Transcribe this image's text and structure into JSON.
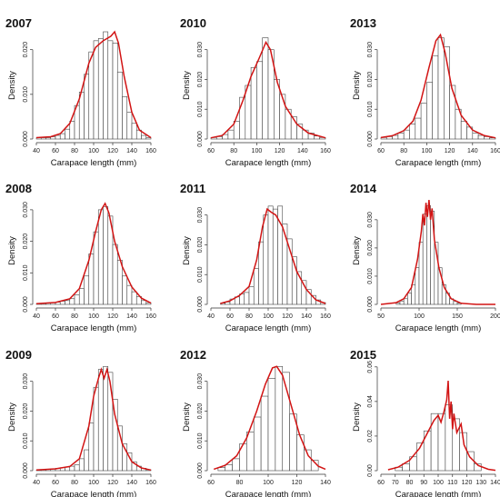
{
  "chart_data": [
    {
      "type": "histogram",
      "title": "2007",
      "xlabel": "Carapace length (mm)",
      "ylabel": "Density",
      "xlim": [
        40,
        160
      ],
      "ylim": [
        0,
        0.024
      ],
      "xticks": [
        40,
        60,
        80,
        100,
        120,
        140,
        160
      ],
      "yticks": [
        0,
        0.01,
        0.02
      ],
      "yticklabels": [
        "0.000",
        "0.010",
        "0.020"
      ],
      "bin_edges": [
        40,
        45,
        50,
        55,
        60,
        65,
        70,
        75,
        80,
        85,
        90,
        95,
        100,
        105,
        110,
        115,
        120,
        125,
        130,
        135,
        140,
        145,
        150,
        155,
        160
      ],
      "values": [
        0.0003,
        0.0003,
        0.0003,
        0.0005,
        0.0008,
        0.0012,
        0.0022,
        0.004,
        0.0075,
        0.0105,
        0.0145,
        0.0195,
        0.022,
        0.0225,
        0.024,
        0.022,
        0.0215,
        0.015,
        0.0095,
        0.006,
        0.0035,
        0.002,
        0.0008,
        0.0003
      ],
      "curve": [
        [
          40,
          0.0003
        ],
        [
          55,
          0.0005
        ],
        [
          65,
          0.0012
        ],
        [
          75,
          0.0035
        ],
        [
          85,
          0.009
        ],
        [
          95,
          0.017
        ],
        [
          102,
          0.0205
        ],
        [
          110,
          0.022
        ],
        [
          118,
          0.023
        ],
        [
          122,
          0.024
        ],
        [
          126,
          0.0215
        ],
        [
          132,
          0.014
        ],
        [
          140,
          0.006
        ],
        [
          148,
          0.002
        ],
        [
          160,
          0.0003
        ]
      ]
    },
    {
      "type": "histogram",
      "title": "2010",
      "xlabel": "Carapace length (mm)",
      "ylabel": "Density",
      "xlim": [
        60,
        160
      ],
      "ylim": [
        0,
        0.036
      ],
      "xticks": [
        60,
        80,
        100,
        120,
        140,
        160
      ],
      "yticks": [
        0,
        0.01,
        0.02,
        0.03
      ],
      "yticklabels": [
        "0.000",
        "0.010",
        "0.020",
        "0.030"
      ],
      "bin_edges": [
        60,
        65,
        70,
        75,
        80,
        85,
        90,
        95,
        100,
        105,
        110,
        115,
        120,
        125,
        130,
        135,
        140,
        145,
        150,
        155,
        160
      ],
      "values": [
        0.0005,
        0.0008,
        0.0015,
        0.003,
        0.006,
        0.014,
        0.018,
        0.024,
        0.026,
        0.034,
        0.03,
        0.02,
        0.015,
        0.01,
        0.0075,
        0.005,
        0.003,
        0.002,
        0.001,
        0.0005
      ],
      "curve": [
        [
          60,
          0.0004
        ],
        [
          70,
          0.0012
        ],
        [
          80,
          0.005
        ],
        [
          88,
          0.013
        ],
        [
          95,
          0.021
        ],
        [
          102,
          0.027
        ],
        [
          108,
          0.0325
        ],
        [
          112,
          0.03
        ],
        [
          118,
          0.019
        ],
        [
          125,
          0.011
        ],
        [
          135,
          0.005
        ],
        [
          145,
          0.002
        ],
        [
          160,
          0.0004
        ]
      ]
    },
    {
      "type": "histogram",
      "title": "2013",
      "xlabel": "Carapace length (mm)",
      "ylabel": "Density",
      "xlim": [
        60,
        160
      ],
      "ylim": [
        0,
        0.036
      ],
      "xticks": [
        60,
        80,
        100,
        120,
        140,
        160
      ],
      "yticks": [
        0,
        0.01,
        0.02,
        0.03
      ],
      "yticklabels": [
        "0.000",
        "0.010",
        "0.020",
        "0.030"
      ],
      "bin_edges": [
        60,
        65,
        70,
        75,
        80,
        85,
        90,
        95,
        100,
        105,
        110,
        115,
        120,
        125,
        130,
        135,
        140,
        145,
        150,
        155,
        160
      ],
      "values": [
        0.0005,
        0.0008,
        0.0012,
        0.002,
        0.003,
        0.005,
        0.007,
        0.012,
        0.019,
        0.028,
        0.034,
        0.031,
        0.018,
        0.01,
        0.006,
        0.004,
        0.002,
        0.0012,
        0.0008,
        0.0004
      ],
      "curve": [
        [
          60,
          0.0005
        ],
        [
          70,
          0.0011
        ],
        [
          80,
          0.0028
        ],
        [
          88,
          0.006
        ],
        [
          95,
          0.013
        ],
        [
          102,
          0.024
        ],
        [
          108,
          0.033
        ],
        [
          112,
          0.035
        ],
        [
          116,
          0.029
        ],
        [
          122,
          0.017
        ],
        [
          130,
          0.008
        ],
        [
          140,
          0.003
        ],
        [
          150,
          0.0012
        ],
        [
          160,
          0.0004
        ]
      ]
    },
    {
      "type": "histogram",
      "title": "2008",
      "xlabel": "Carapace length (mm)",
      "ylabel": "Density",
      "xlim": [
        40,
        160
      ],
      "ylim": [
        0,
        0.034
      ],
      "xticks": [
        40,
        60,
        80,
        100,
        120,
        140,
        160
      ],
      "yticks": [
        0,
        0.01,
        0.02,
        0.03
      ],
      "yticklabels": [
        "0.000",
        "0.010",
        "0.020",
        "0.030"
      ],
      "bin_edges": [
        40,
        45,
        50,
        55,
        60,
        65,
        70,
        75,
        80,
        85,
        90,
        95,
        100,
        105,
        110,
        115,
        120,
        125,
        130,
        135,
        140,
        145,
        150,
        155,
        160
      ],
      "values": [
        0.0002,
        0.0003,
        0.0004,
        0.0005,
        0.0007,
        0.001,
        0.0012,
        0.0018,
        0.003,
        0.005,
        0.009,
        0.016,
        0.023,
        0.03,
        0.031,
        0.028,
        0.019,
        0.014,
        0.009,
        0.006,
        0.004,
        0.0025,
        0.0012,
        0.0005
      ],
      "curve": [
        [
          40,
          0.0002
        ],
        [
          60,
          0.0006
        ],
        [
          75,
          0.0018
        ],
        [
          85,
          0.005
        ],
        [
          95,
          0.014
        ],
        [
          102,
          0.023
        ],
        [
          108,
          0.03
        ],
        [
          112,
          0.032
        ],
        [
          116,
          0.029
        ],
        [
          122,
          0.02
        ],
        [
          130,
          0.012
        ],
        [
          140,
          0.0055
        ],
        [
          150,
          0.002
        ],
        [
          160,
          0.0004
        ]
      ]
    },
    {
      "type": "histogram",
      "title": "2011",
      "xlabel": "Carapace length (mm)",
      "ylabel": "Density",
      "xlim": [
        40,
        160
      ],
      "ylim": [
        0,
        0.036
      ],
      "xticks": [
        40,
        60,
        80,
        100,
        120,
        140,
        160
      ],
      "yticks": [
        0,
        0.01,
        0.02,
        0.03
      ],
      "yticklabels": [
        "0.000",
        "0.010",
        "0.020",
        "0.030"
      ],
      "bin_edges": [
        50,
        55,
        60,
        65,
        70,
        75,
        80,
        85,
        90,
        95,
        100,
        105,
        110,
        115,
        120,
        125,
        130,
        135,
        140,
        145,
        150,
        155,
        160
      ],
      "values": [
        0.0004,
        0.0008,
        0.0018,
        0.0025,
        0.0035,
        0.004,
        0.006,
        0.012,
        0.021,
        0.03,
        0.033,
        0.032,
        0.033,
        0.027,
        0.022,
        0.016,
        0.011,
        0.008,
        0.005,
        0.003,
        0.0015,
        0.0006
      ],
      "curve": [
        [
          50,
          0.0003
        ],
        [
          60,
          0.0012
        ],
        [
          70,
          0.003
        ],
        [
          80,
          0.006
        ],
        [
          88,
          0.015
        ],
        [
          94,
          0.026
        ],
        [
          99,
          0.032
        ],
        [
          103,
          0.031
        ],
        [
          108,
          0.03
        ],
        [
          115,
          0.026
        ],
        [
          122,
          0.019
        ],
        [
          130,
          0.011
        ],
        [
          140,
          0.005
        ],
        [
          150,
          0.0015
        ],
        [
          160,
          0.0003
        ]
      ]
    },
    {
      "type": "histogram",
      "title": "2014",
      "xlabel": "Carapace length (mm)",
      "ylabel": "Density",
      "xlim": [
        50,
        200
      ],
      "ylim": [
        0,
        0.038
      ],
      "xticks": [
        50,
        100,
        150,
        200
      ],
      "yticks": [
        0,
        0.01,
        0.02,
        0.03
      ],
      "yticklabels": [
        "0.000",
        "0.010",
        "0.020",
        "0.030"
      ],
      "bin_edges": [
        70,
        75,
        80,
        85,
        90,
        95,
        100,
        105,
        110,
        115,
        120,
        125,
        130,
        135,
        140,
        145,
        150,
        155
      ],
      "values": [
        0.0005,
        0.0012,
        0.002,
        0.004,
        0.007,
        0.013,
        0.022,
        0.032,
        0.035,
        0.033,
        0.022,
        0.013,
        0.007,
        0.004,
        0.002,
        0.001,
        0.0004
      ],
      "curve": [
        [
          50,
          0
        ],
        [
          70,
          0.0006
        ],
        [
          80,
          0.002
        ],
        [
          90,
          0.006
        ],
        [
          98,
          0.016
        ],
        [
          103,
          0.026
        ],
        [
          105,
          0.032
        ],
        [
          107,
          0.028
        ],
        [
          109,
          0.036
        ],
        [
          111,
          0.031
        ],
        [
          113,
          0.037
        ],
        [
          115,
          0.03
        ],
        [
          117,
          0.034
        ],
        [
          120,
          0.023
        ],
        [
          126,
          0.013
        ],
        [
          133,
          0.006
        ],
        [
          142,
          0.002
        ],
        [
          155,
          0.0004
        ],
        [
          175,
          0
        ],
        [
          200,
          0
        ]
      ]
    },
    {
      "type": "histogram",
      "title": "2009",
      "xlabel": "Carapace length (mm)",
      "ylabel": "Density",
      "xlim": [
        40,
        160
      ],
      "ylim": [
        0,
        0.036
      ],
      "xticks": [
        40,
        60,
        80,
        100,
        120,
        140,
        160
      ],
      "yticks": [
        0,
        0.01,
        0.02,
        0.03
      ],
      "yticklabels": [
        "0.000",
        "0.010",
        "0.020",
        "0.030"
      ],
      "bin_edges": [
        40,
        45,
        50,
        55,
        60,
        65,
        70,
        75,
        80,
        85,
        90,
        95,
        100,
        105,
        110,
        115,
        120,
        125,
        130,
        135,
        140,
        145,
        150,
        155,
        160
      ],
      "values": [
        0.0002,
        0.0003,
        0.0004,
        0.0006,
        0.0008,
        0.001,
        0.0012,
        0.0015,
        0.002,
        0.004,
        0.007,
        0.016,
        0.028,
        0.034,
        0.035,
        0.033,
        0.024,
        0.015,
        0.009,
        0.006,
        0.003,
        0.0015,
        0.0008,
        0.0003
      ],
      "curve": [
        [
          40,
          0.0002
        ],
        [
          60,
          0.0006
        ],
        [
          75,
          0.0014
        ],
        [
          85,
          0.004
        ],
        [
          95,
          0.015
        ],
        [
          100,
          0.025
        ],
        [
          105,
          0.031
        ],
        [
          108,
          0.034
        ],
        [
          111,
          0.031
        ],
        [
          114,
          0.034
        ],
        [
          117,
          0.03
        ],
        [
          122,
          0.019
        ],
        [
          130,
          0.009
        ],
        [
          140,
          0.003
        ],
        [
          150,
          0.0009
        ],
        [
          160,
          0.0002
        ]
      ]
    },
    {
      "type": "histogram",
      "title": "2012",
      "xlabel": "Carapace length (mm)",
      "ylabel": "Density",
      "xlim": [
        60,
        140
      ],
      "ylim": [
        0,
        0.036
      ],
      "xticks": [
        60,
        80,
        100,
        120,
        140
      ],
      "yticks": [
        0,
        0.01,
        0.02,
        0.03
      ],
      "yticklabels": [
        "0.000",
        "0.010",
        "0.020",
        "0.030"
      ],
      "bin_edges": [
        65,
        70,
        75,
        80,
        85,
        90,
        95,
        100,
        105,
        110,
        115,
        120,
        125,
        130,
        135
      ],
      "values": [
        0.001,
        0.002,
        0.004,
        0.009,
        0.013,
        0.018,
        0.025,
        0.031,
        0.035,
        0.033,
        0.019,
        0.012,
        0.007,
        0.0035
      ],
      "curve": [
        [
          62,
          0.0005
        ],
        [
          70,
          0.0018
        ],
        [
          78,
          0.005
        ],
        [
          85,
          0.011
        ],
        [
          92,
          0.02
        ],
        [
          98,
          0.029
        ],
        [
          103,
          0.0345
        ],
        [
          106,
          0.035
        ],
        [
          110,
          0.032
        ],
        [
          116,
          0.022
        ],
        [
          122,
          0.012
        ],
        [
          128,
          0.005
        ],
        [
          135,
          0.0015
        ],
        [
          140,
          0.0005
        ]
      ]
    },
    {
      "type": "histogram",
      "title": "2015",
      "xlabel": "Carapace length (mm)",
      "ylabel": "Density",
      "xlim": [
        60,
        140
      ],
      "ylim": [
        0,
        0.062
      ],
      "xticks": [
        60,
        70,
        80,
        90,
        100,
        110,
        120,
        130,
        140
      ],
      "yticks": [
        0,
        0.02,
        0.04,
        0.06
      ],
      "yticklabels": [
        "0.00",
        "0.02",
        "0.04",
        "0.06"
      ],
      "bin_edges": [
        70,
        75,
        80,
        85,
        90,
        95,
        100,
        105,
        110,
        115,
        120,
        125,
        130
      ],
      "values": [
        0.002,
        0.004,
        0.008,
        0.016,
        0.023,
        0.033,
        0.033,
        0.038,
        0.03,
        0.022,
        0.011,
        0.004
      ],
      "curve": [
        [
          65,
          0.0005
        ],
        [
          72,
          0.002
        ],
        [
          80,
          0.006
        ],
        [
          87,
          0.013
        ],
        [
          92,
          0.021
        ],
        [
          97,
          0.029
        ],
        [
          100,
          0.032
        ],
        [
          102,
          0.028
        ],
        [
          104,
          0.034
        ],
        [
          106,
          0.041
        ],
        [
          107,
          0.052
        ],
        [
          108,
          0.03
        ],
        [
          109,
          0.04
        ],
        [
          110,
          0.024
        ],
        [
          111,
          0.033
        ],
        [
          113,
          0.022
        ],
        [
          116,
          0.027
        ],
        [
          118,
          0.015
        ],
        [
          122,
          0.008
        ],
        [
          128,
          0.003
        ],
        [
          135,
          0.0008
        ],
        [
          140,
          0.0002
        ]
      ]
    }
  ]
}
